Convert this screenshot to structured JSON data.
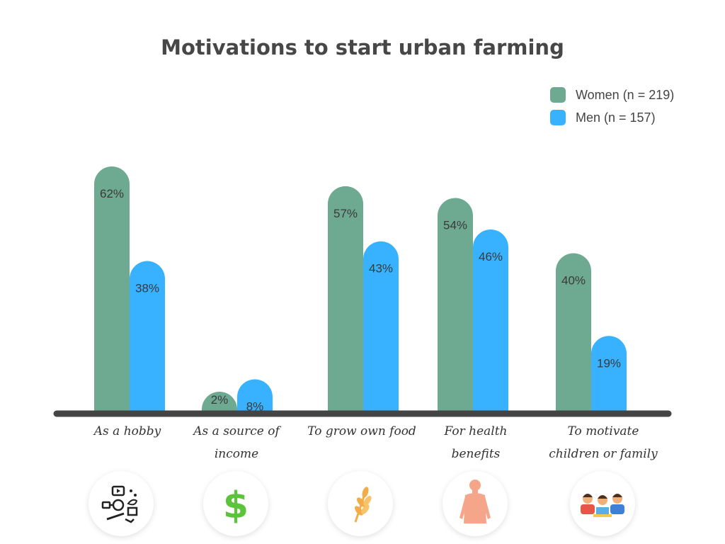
{
  "chart_data": {
    "type": "bar",
    "title": "Motivations to start urban farming",
    "categories": [
      [
        "As a hobby"
      ],
      [
        "As a source of",
        "income"
      ],
      [
        "To grow own food"
      ],
      [
        "For health",
        "benefits"
      ],
      [
        "To motivate",
        "children or family"
      ]
    ],
    "series": [
      {
        "name": "Women (n = 219)",
        "color": "#6ea992",
        "values": [
          62,
          2,
          57,
          54,
          40
        ],
        "labels": [
          "62%",
          "2%",
          "57%",
          "54%",
          "40%"
        ]
      },
      {
        "name": "Men (n = 157)",
        "color": "#38b2ff",
        "values": [
          38,
          8,
          43,
          46,
          19
        ],
        "labels": [
          "38%",
          "8%",
          "43%",
          "46%",
          "19%"
        ]
      }
    ],
    "ylim": [
      0,
      62
    ],
    "unit": "%",
    "grid": false,
    "legend_position": "top-right",
    "baseline_color": "#444444",
    "icons": [
      "hobby-tools-icon",
      "dollar-icon",
      "wheat-icon",
      "human-body-icon",
      "children-icon"
    ]
  }
}
